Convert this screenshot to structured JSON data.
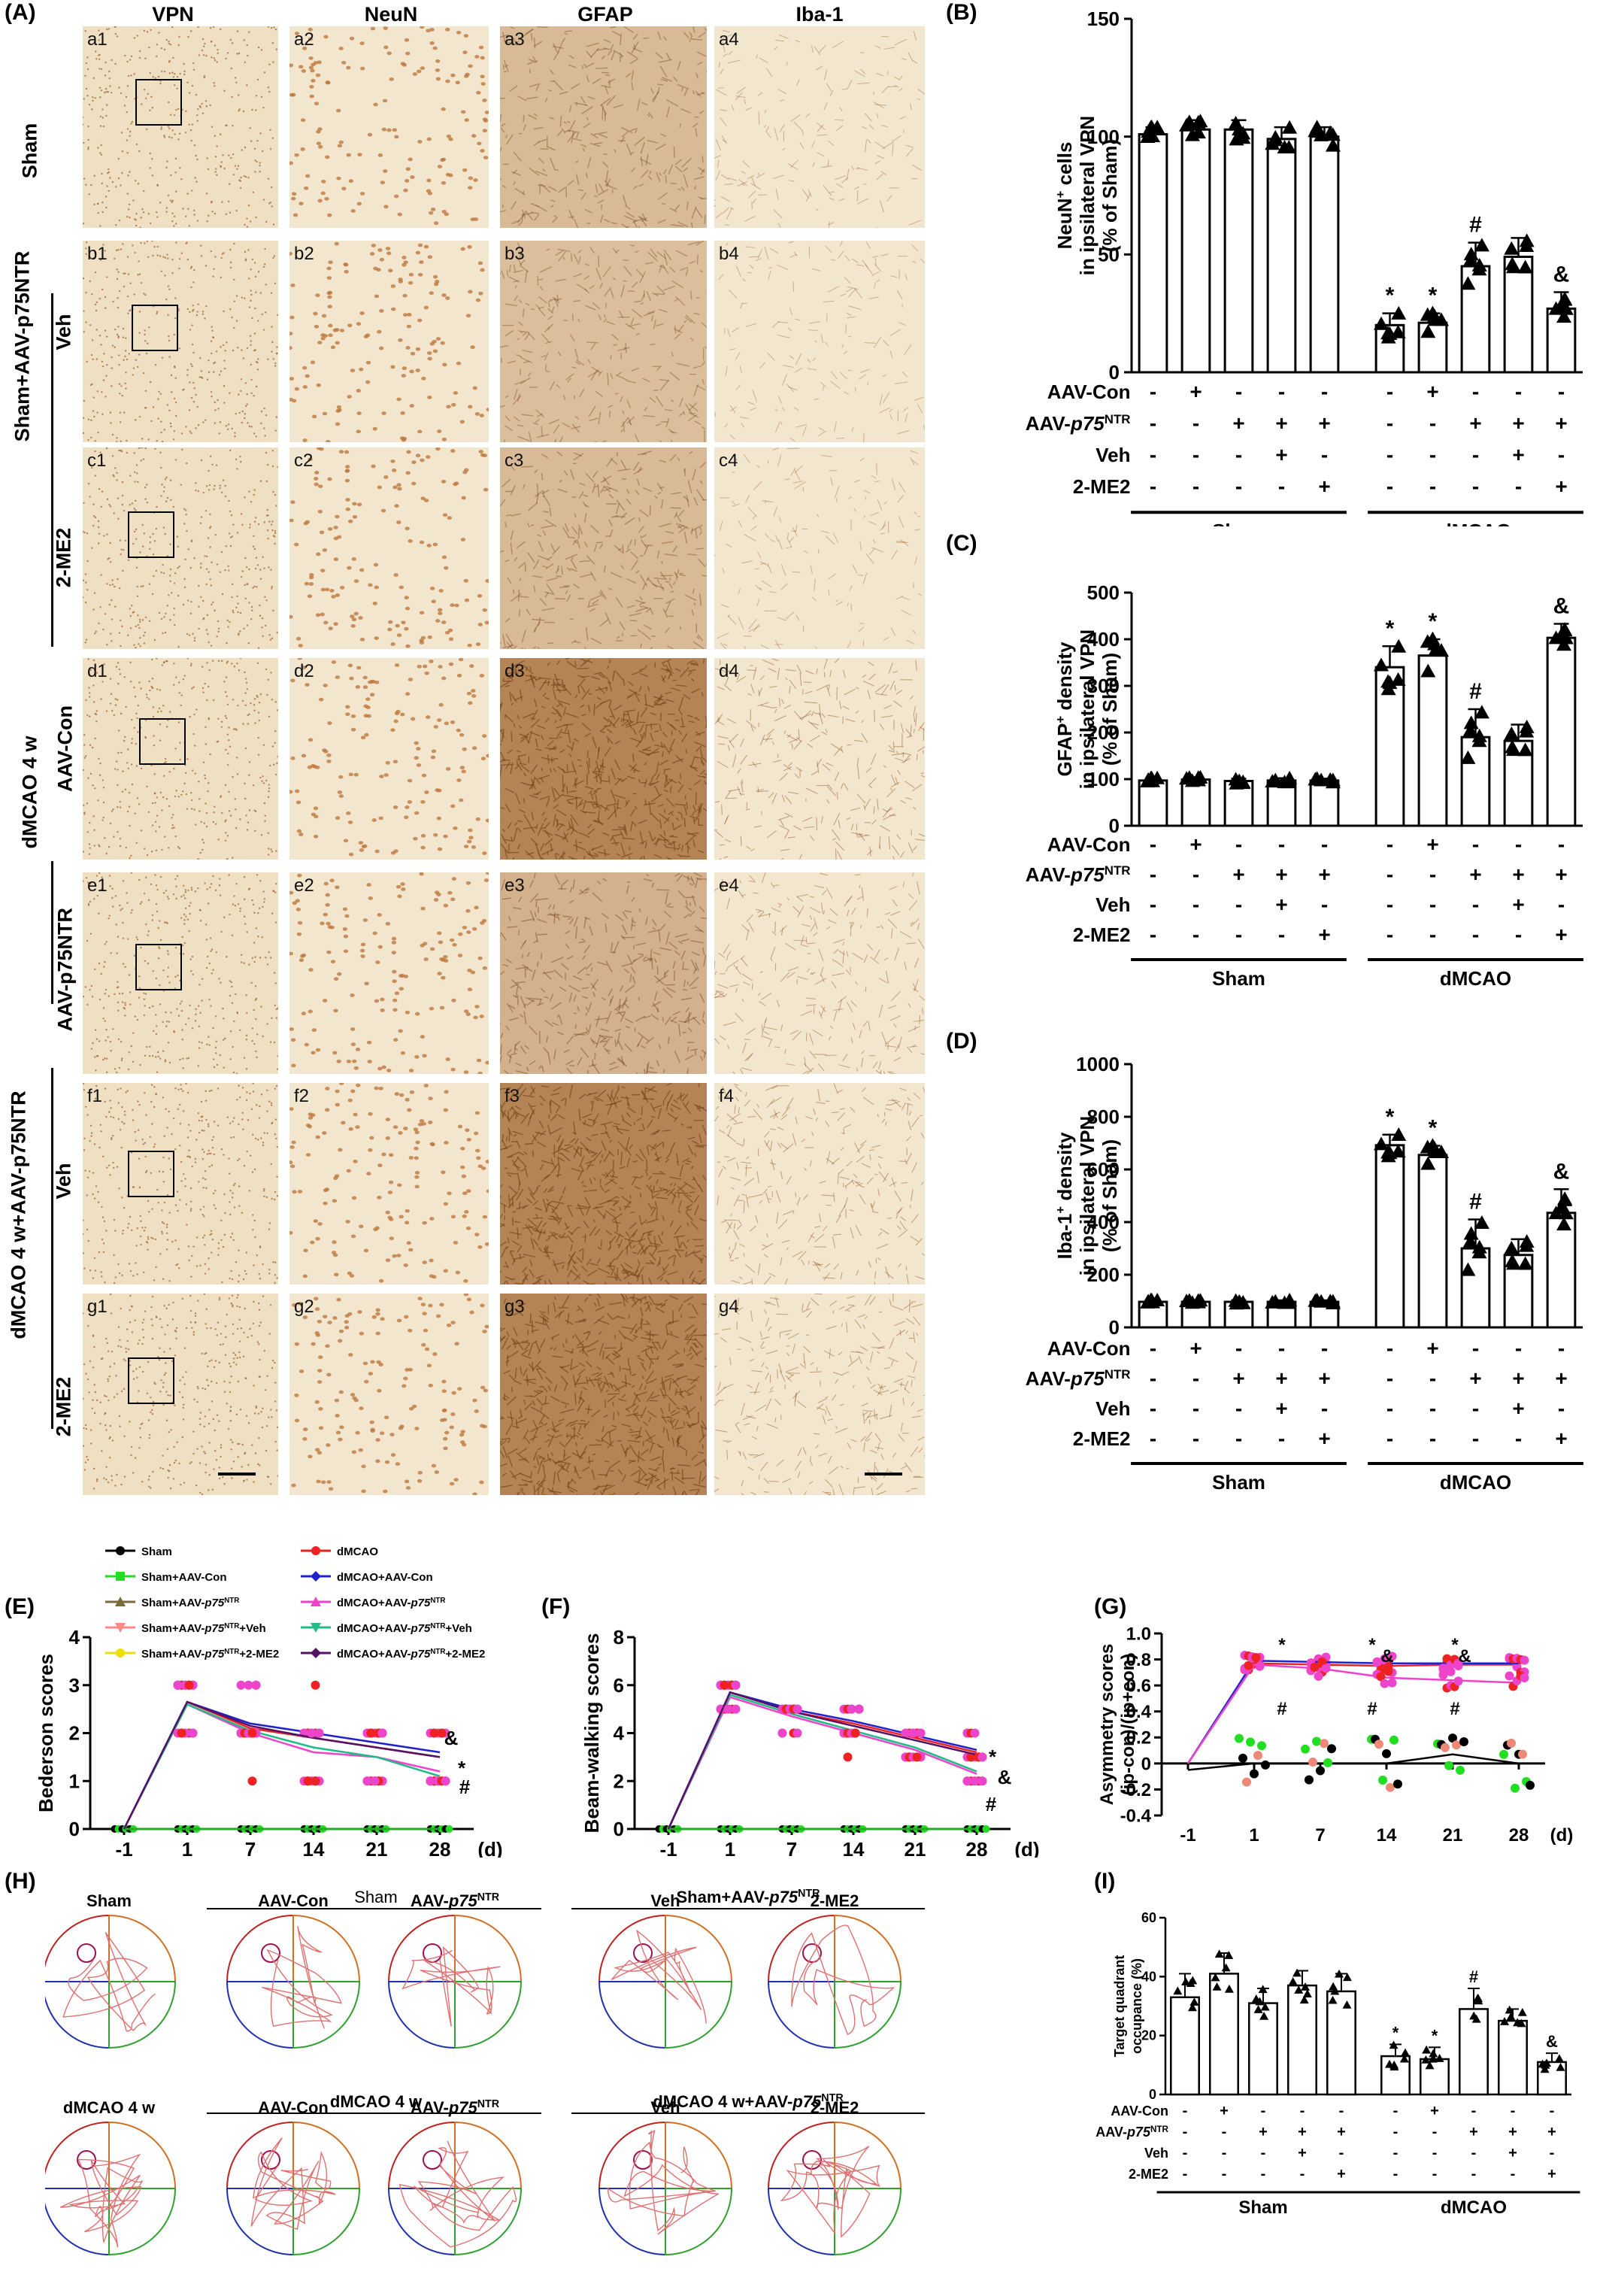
{
  "panel_labels": {
    "A": "(A)",
    "B": "(B)",
    "C": "(C)",
    "D": "(D)",
    "E": "(E)",
    "F": "(F)",
    "G": "(G)",
    "H": "(H)",
    "I": "(I)"
  },
  "columns": [
    "VPN",
    "NeuN",
    "GFAP",
    "Iba-1"
  ],
  "rows": [
    {
      "id": "a",
      "labels": [
        "a1",
        "a2",
        "a3",
        "a4"
      ]
    },
    {
      "id": "b",
      "labels": [
        "b1",
        "b2",
        "b3",
        "b4"
      ]
    },
    {
      "id": "c",
      "labels": [
        "c1",
        "c2",
        "c3",
        "c4"
      ]
    },
    {
      "id": "d",
      "labels": [
        "d1",
        "d2",
        "d3",
        "d4"
      ]
    },
    {
      "id": "e",
      "labels": [
        "e1",
        "e2",
        "e3",
        "e4"
      ]
    },
    {
      "id": "f",
      "labels": [
        "f1",
        "f2",
        "f3",
        "f4"
      ]
    },
    {
      "id": "g",
      "labels": [
        "g1",
        "g2",
        "g3",
        "g4"
      ]
    }
  ],
  "row_groups": {
    "sham": "Sham",
    "sham_aav": "Sham+AAV-p75NTR",
    "veh": "Veh",
    "me2": "2-ME2",
    "dmcao4w": "dMCAO 4 w",
    "aav_con": "AAV-Con",
    "aav_p75": "AAV-p75NTR",
    "dmcao4w_aav": "dMCAO 4 w+AAV-p75NTR"
  },
  "treatment_rows": [
    "AAV-Con",
    "AAV-p75NTR",
    "Veh",
    "2-ME2"
  ],
  "treatment_matrix": [
    [
      "-",
      "+",
      "-",
      "-",
      "-",
      "-",
      "+",
      "-",
      "-",
      "-"
    ],
    [
      "-",
      "-",
      "+",
      "+",
      "+",
      "-",
      "-",
      "+",
      "+",
      "+"
    ],
    [
      "-",
      "-",
      "-",
      "+",
      "-",
      "-",
      "-",
      "-",
      "+",
      "-"
    ],
    [
      "-",
      "-",
      "-",
      "-",
      "+",
      "-",
      "-",
      "-",
      "-",
      "+"
    ]
  ],
  "groups": {
    "sham": "Sham",
    "dmcao": "dMCAO"
  },
  "chart_data": [
    {
      "panel": "B",
      "type": "bar",
      "ylabel": "NeuN+ cells in ipsilateral VPN (% of Sham)",
      "ylim": [
        0,
        150
      ],
      "yticks": [
        0,
        50,
        100,
        150
      ],
      "values": [
        101,
        103,
        103,
        99,
        100,
        20,
        21,
        45,
        49,
        27
      ],
      "errors": [
        3,
        4,
        4,
        5,
        4,
        5,
        4,
        10,
        8,
        7
      ],
      "marks": [
        "",
        "",
        "",
        "",
        "",
        "*",
        "*",
        "#",
        "",
        "&"
      ]
    },
    {
      "panel": "C",
      "type": "bar",
      "ylabel": "GFAP+ density in ipsilateral VPN (% of Sham)",
      "ylim": [
        0,
        500
      ],
      "yticks": [
        0,
        100,
        200,
        300,
        400,
        500
      ],
      "values": [
        97,
        99,
        96,
        97,
        97,
        340,
        365,
        190,
        182,
        403
      ],
      "errors": [
        5,
        5,
        5,
        5,
        4,
        45,
        35,
        60,
        35,
        30
      ],
      "marks": [
        "",
        "",
        "",
        "",
        "",
        "*",
        "*",
        "#",
        "",
        "&"
      ]
    },
    {
      "panel": "D",
      "type": "bar",
      "ylabel": "Iba-1+ density in ipsilateral VPN (% of Sham)",
      "ylim": [
        0,
        1000
      ],
      "yticks": [
        0,
        200,
        400,
        600,
        800,
        1000
      ],
      "values": [
        97,
        97,
        97,
        97,
        97,
        692,
        655,
        300,
        275,
        435
      ],
      "errors": [
        6,
        6,
        6,
        6,
        6,
        40,
        35,
        110,
        60,
        90
      ],
      "marks": [
        "",
        "",
        "",
        "",
        "",
        "*",
        "*",
        "#",
        "",
        "&"
      ]
    },
    {
      "panel": "E",
      "type": "line",
      "ylabel": "Bederson scores",
      "xlabel": "(d)",
      "x": [
        "-1",
        "1",
        "7",
        "14",
        "21",
        "28"
      ],
      "ylim": [
        0,
        4
      ],
      "yticks": [
        0,
        1,
        2,
        3,
        4
      ],
      "sham_value": 0,
      "series": [
        {
          "name": "dMCAO",
          "values": [
            0,
            2.65,
            2.1,
            1.9,
            1.7,
            1.5
          ]
        },
        {
          "name": "dMCAO+AAV-Con",
          "values": [
            0,
            2.65,
            2.2,
            2.0,
            1.8,
            1.6
          ]
        },
        {
          "name": "dMCAO+AAV-p75NTR",
          "values": [
            0,
            2.6,
            2.0,
            1.6,
            1.5,
            1.2
          ]
        },
        {
          "name": "dMCAO+AAV-p75NTR+Veh",
          "values": [
            0,
            2.6,
            2.05,
            1.7,
            1.5,
            1.1
          ]
        },
        {
          "name": "dMCAO+AAV-p75NTR+2-ME2",
          "values": [
            0,
            2.65,
            2.15,
            1.9,
            1.7,
            1.5
          ]
        }
      ],
      "annotations": [
        "&",
        "*",
        "#"
      ]
    },
    {
      "panel": "F",
      "type": "line",
      "ylabel": "Beam-walking scores",
      "xlabel": "(d)",
      "x": [
        "-1",
        "1",
        "7",
        "14",
        "21",
        "28"
      ],
      "ylim": [
        0,
        8
      ],
      "yticks": [
        0,
        2,
        4,
        6,
        8
      ],
      "sham_value": 0,
      "series": [
        {
          "name": "dMCAO",
          "values": [
            0,
            5.7,
            4.9,
            4.4,
            3.8,
            3.2
          ]
        },
        {
          "name": "dMCAO+AAV-Con",
          "values": [
            0,
            5.7,
            5.0,
            4.5,
            3.9,
            3.3
          ]
        },
        {
          "name": "dMCAO+AAV-p75NTR",
          "values": [
            0,
            5.5,
            4.7,
            4.0,
            3.3,
            2.3
          ]
        },
        {
          "name": "dMCAO+AAV-p75NTR+Veh",
          "values": [
            0,
            5.6,
            4.8,
            4.1,
            3.4,
            2.4
          ]
        },
        {
          "name": "dMCAO+AAV-p75NTR+2-ME2",
          "values": [
            0,
            5.7,
            4.9,
            4.3,
            3.7,
            3.1
          ]
        }
      ],
      "annotations": [
        "*",
        "&",
        "#"
      ]
    },
    {
      "panel": "G",
      "type": "line",
      "ylabel": "Asymmetry scores (ip-con)/(ip+con)",
      "xlabel": "(d)",
      "x": [
        "-1",
        "1",
        "7",
        "14",
        "21",
        "28"
      ],
      "ylim": [
        -0.4,
        1.0
      ],
      "yticks": [
        "-0.4",
        "-0.2",
        "0",
        "0.2",
        "0.4",
        "0.6",
        "0.8",
        "1.0"
      ],
      "series": [
        {
          "name": "dMCAO",
          "values": [
            0,
            0.77,
            0.76,
            0.75,
            0.76,
            0.76
          ]
        },
        {
          "name": "dMCAO+AAV-Con",
          "values": [
            0,
            0.79,
            0.78,
            0.77,
            0.77,
            0.77
          ]
        },
        {
          "name": "dMCAO+AAV-p75NTR",
          "values": [
            0,
            0.76,
            0.73,
            0.66,
            0.64,
            0.62
          ]
        },
        {
          "name": "Sham",
          "values": [
            -0.05,
            0.0,
            0.0,
            0.0,
            0.07,
            0.0
          ]
        }
      ],
      "annotations": [
        "*",
        "*",
        "&",
        "*",
        "&",
        "#",
        "#",
        "#"
      ]
    },
    {
      "panel": "I",
      "type": "bar",
      "ylabel": "Target quadrant occupance (%)",
      "ylim": [
        0,
        60
      ],
      "yticks": [
        0,
        20,
        40,
        60
      ],
      "values": [
        33,
        41,
        31,
        37,
        35,
        13,
        12,
        29,
        25,
        11
      ],
      "errors": [
        8,
        7,
        5,
        5,
        6,
        4,
        4,
        7,
        4,
        3
      ],
      "marks": [
        "",
        "",
        "",
        "",
        "",
        "*",
        "*",
        "#",
        "",
        "&"
      ]
    }
  ],
  "legend": [
    "Sham",
    "dMCAO",
    "Sham+AAV-Con",
    "dMCAO+AAV-Con",
    "Sham+AAV-p75NTR",
    "dMCAO+AAV-p75NTR",
    "Sham+AAV-p75NTR+Veh",
    "dMCAO+AAV-p75NTR+Veh",
    "Sham+AAV-p75NTR+2-ME2",
    "dMCAO+AAV-p75NTR+2-ME2"
  ],
  "legend_colors": [
    "#000000",
    "#ee2222",
    "#22dd22",
    "#2222cc",
    "#7a6a3a",
    "#ee44cc",
    "#ff8888",
    "#22bb88",
    "#eedd00",
    "#551166"
  ],
  "maze": {
    "top_group_sham": "Sham",
    "top_group_sham_aav": "Sham+AAV-p75NTR",
    "bottom_group_dmcao": "dMCAO 4 w",
    "bottom_group_dmcao_aav": "dMCAO 4 w+AAV-p75NTR",
    "top_labels": [
      "Sham",
      "AAV-Con",
      "AAV-p75NTR",
      "Veh",
      "2-ME2"
    ],
    "bottom_labels": [
      "dMCAO 4 w",
      "AAV-Con",
      "AAV-p75NTR",
      "Veh",
      "2-ME2"
    ]
  },
  "colors": {
    "tissue": "#f1e1c6",
    "cell": "#b87a3c"
  }
}
